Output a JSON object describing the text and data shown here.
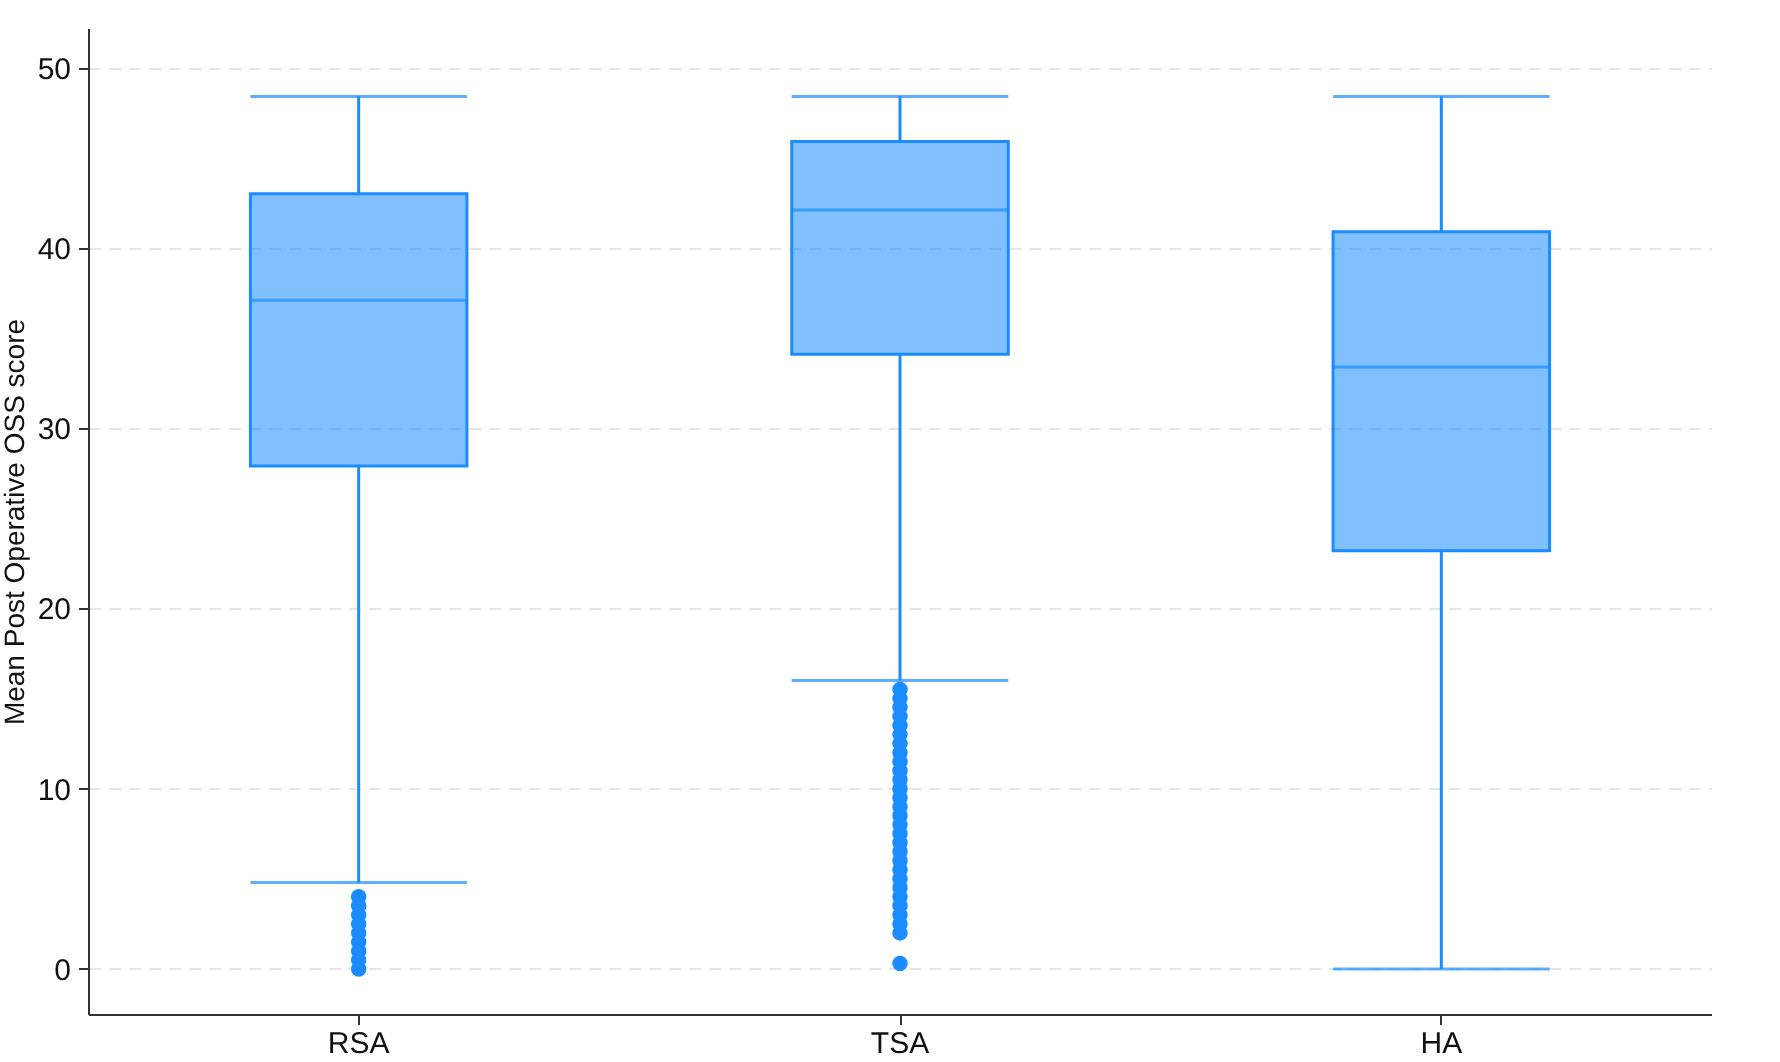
{
  "chart_data": {
    "type": "box",
    "ylabel": "Mean Post Operative OSS score",
    "categories": [
      "RSA",
      "TSA",
      "HA"
    ],
    "series": [
      {
        "color": "#1a8cff",
        "boxes": [
          {
            "low": 4.8,
            "q1": 27.9,
            "median": 37.1,
            "q3": 43,
            "high": 48.4,
            "outliers": [
              0,
              0.5,
              1,
              1.5,
              2,
              2.5,
              3,
              3.5,
              4
            ]
          },
          {
            "low": 16,
            "q1": 34.1,
            "median": 42.1,
            "q3": 45.9,
            "high": 48.4,
            "outliers": [
              0.3,
              2,
              2.5,
              3,
              3.5,
              4,
              4.5,
              5,
              5.5,
              6,
              6.5,
              7,
              7.5,
              8,
              8.5,
              9,
              9.5,
              10,
              10.5,
              11,
              11.5,
              12,
              12.5,
              13,
              13.5,
              14,
              14.5,
              15,
              15.5
            ]
          },
          {
            "low": 0,
            "q1": 23.2,
            "median": 33.4,
            "q3": 40.9,
            "high": 48.4
          }
        ]
      }
    ],
    "ylim": [
      -2.5,
      52.2
    ],
    "yticks": [
      0,
      10,
      20,
      30,
      40,
      50
    ],
    "grid": "y"
  }
}
